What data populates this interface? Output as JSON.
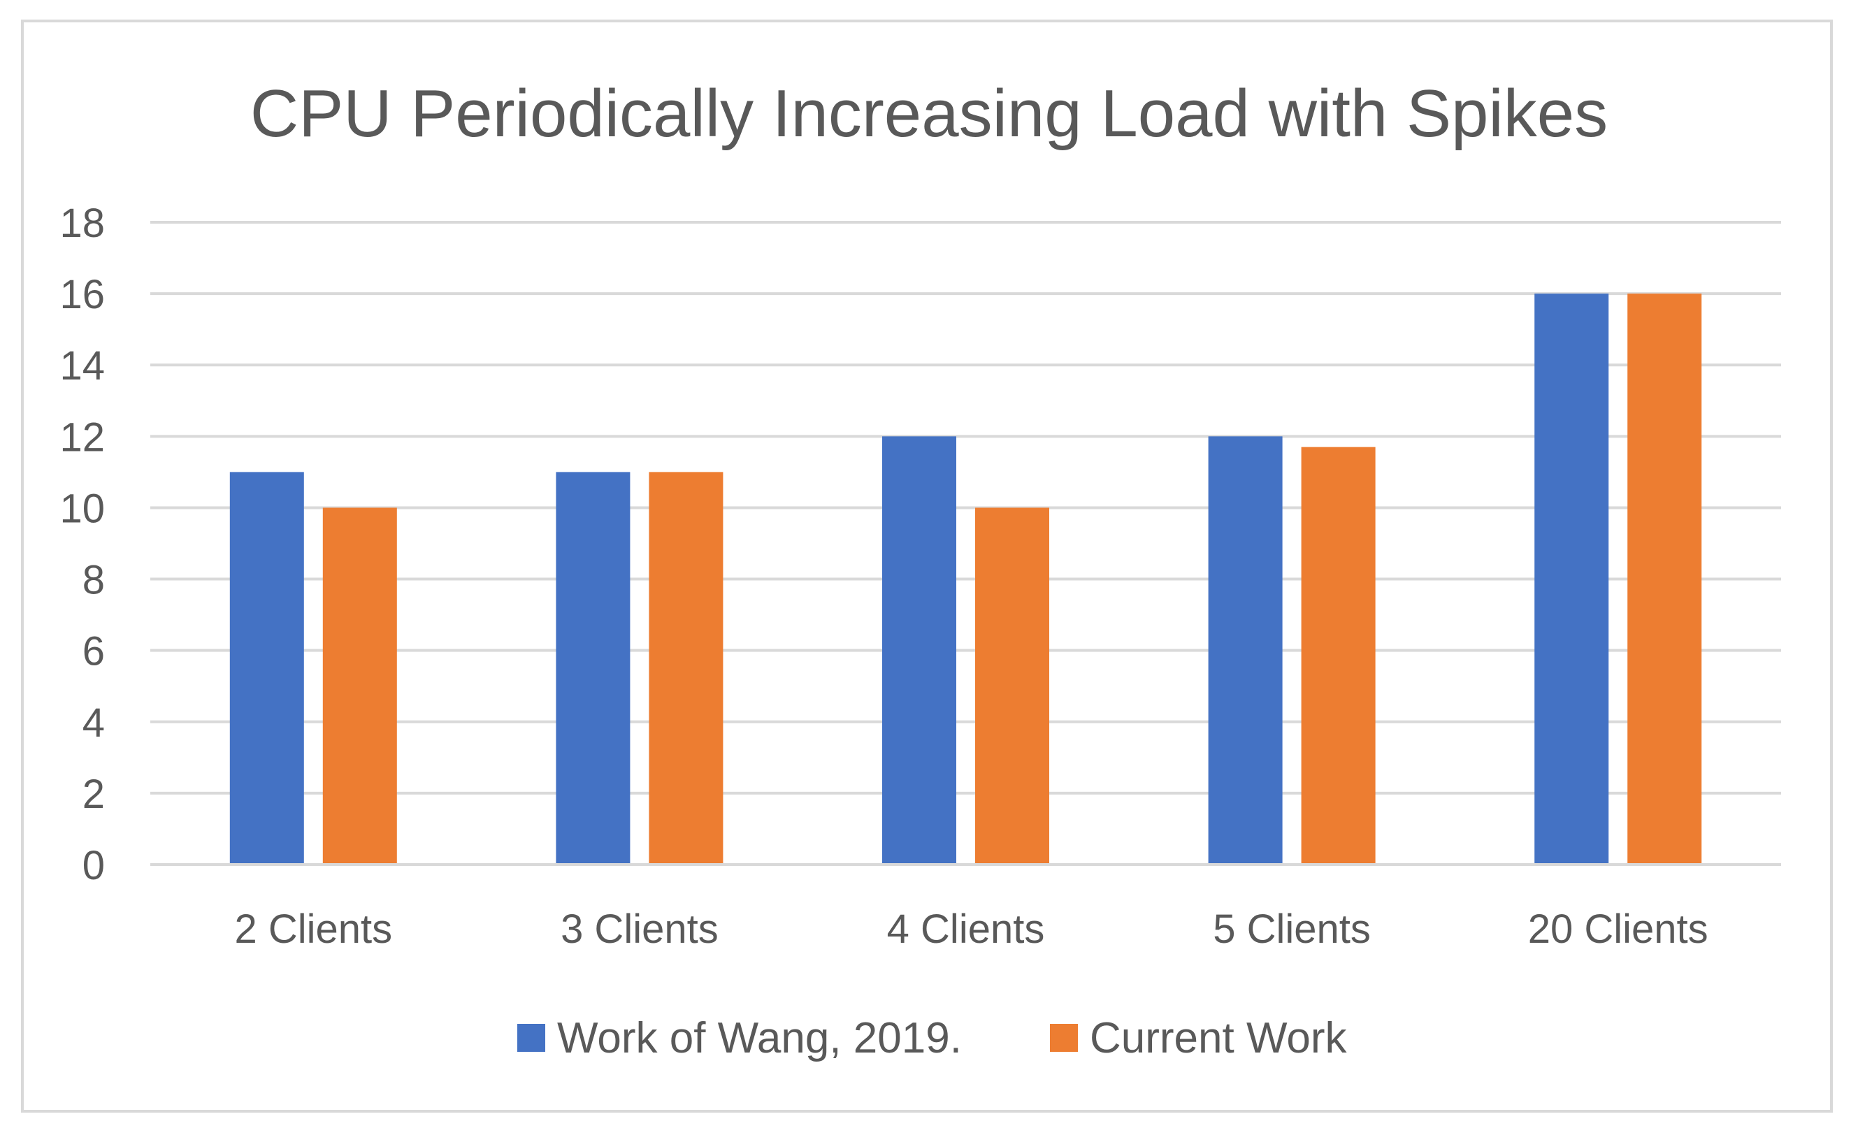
{
  "chart_data": {
    "type": "bar",
    "title": "CPU Periodically Increasing Load with Spikes",
    "xlabel": "",
    "ylabel": "",
    "categories": [
      "2 Clients",
      "3 Clients",
      "4 Clients",
      "5 Clients",
      "20 Clients"
    ],
    "series": [
      {
        "name": "Work of Wang, 2019.",
        "color": "#4472c4",
        "values": [
          11,
          11,
          12,
          12,
          16
        ]
      },
      {
        "name": "Current Work",
        "color": "#ed7d31",
        "values": [
          10,
          11,
          10,
          11.7,
          16
        ]
      }
    ],
    "ylim": [
      0,
      18
    ],
    "yticks": [
      0,
      2,
      4,
      6,
      8,
      10,
      12,
      14,
      16,
      18
    ],
    "grid": true,
    "legend_position": "bottom"
  }
}
